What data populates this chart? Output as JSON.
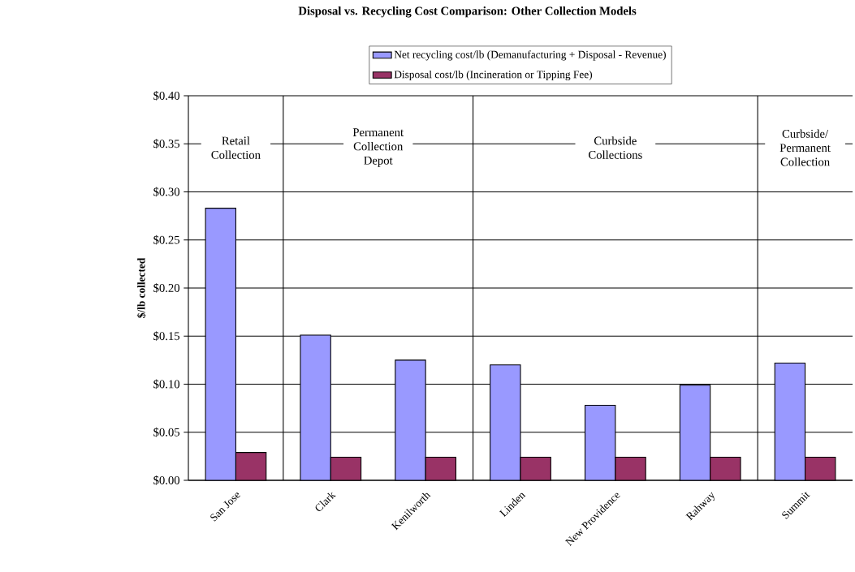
{
  "chart_data": {
    "type": "bar",
    "title": "Disposal vs. Recycling Cost Comparison: Other Collection Models",
    "ylabel": "$/lb collected",
    "categories": [
      "San Jose",
      "Clark",
      "Kenilworth",
      "Linden",
      "New Providence",
      "Rahway",
      "Summit"
    ],
    "series": [
      {
        "name": "Net recycling cost/lb (Demanufacturing + Disposal - Revenue)",
        "color": "#9999ff",
        "values": [
          0.283,
          0.151,
          0.125,
          0.12,
          0.078,
          0.099,
          0.122
        ]
      },
      {
        "name": "Disposal cost/lb (Incineration or Tipping Fee)",
        "color": "#993366",
        "values": [
          0.029,
          0.024,
          0.024,
          0.024,
          0.024,
          0.024,
          0.024
        ]
      }
    ],
    "ylim": [
      0,
      0.4
    ],
    "yticks": [
      {
        "value": 0,
        "label": "$0.00"
      },
      {
        "value": 0.05,
        "label": "$0.05"
      },
      {
        "value": 0.1,
        "label": "$0.10"
      },
      {
        "value": 0.15,
        "label": "$0.15"
      },
      {
        "value": 0.2,
        "label": "$0.20"
      },
      {
        "value": 0.25,
        "label": "$0.25"
      },
      {
        "value": 0.3,
        "label": "$0.30"
      },
      {
        "value": 0.35,
        "label": "$0.35"
      },
      {
        "value": 0.4,
        "label": "$0.40"
      }
    ],
    "grid": "y",
    "legend": "top",
    "annotations": [
      "Retail Collection",
      "Permanent Collection Depot",
      "Curbside Collections",
      "Curbside/ Permanent Collection"
    ]
  }
}
